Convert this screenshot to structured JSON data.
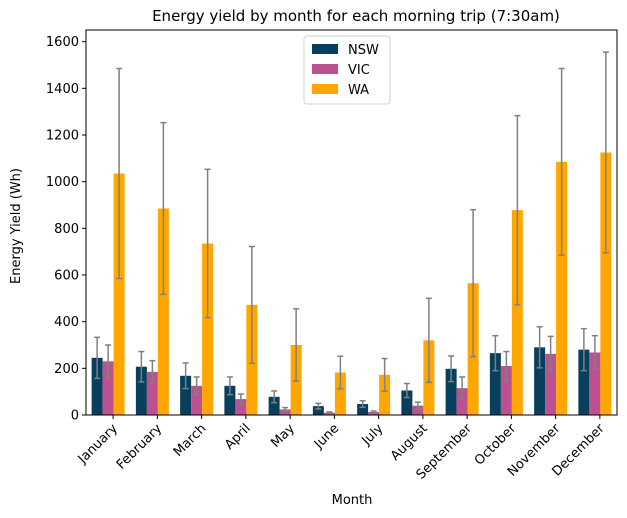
{
  "chart_data": {
    "type": "bar",
    "title": "Energy yield by month for each morning trip (7:30am)",
    "xlabel": "Month",
    "ylabel": "Energy Yield (Wh)",
    "ylim": [
      0,
      1650
    ],
    "yticks": [
      0,
      200,
      400,
      600,
      800,
      1000,
      1200,
      1400,
      1600
    ],
    "categories": [
      "January",
      "February",
      "March",
      "April",
      "May",
      "June",
      "July",
      "August",
      "September",
      "October",
      "November",
      "December"
    ],
    "legend_position": "top-center",
    "grid": false,
    "series": [
      {
        "name": "NSW",
        "color": "#073f5c",
        "values": [
          245,
          207,
          168,
          125,
          78,
          38,
          47,
          105,
          198,
          265,
          290,
          280
        ],
        "errors": [
          88,
          65,
          55,
          38,
          25,
          12,
          14,
          30,
          55,
          75,
          88,
          90
        ]
      },
      {
        "name": "VIC",
        "color": "#bc5090",
        "values": [
          230,
          185,
          125,
          68,
          24,
          10,
          13,
          40,
          115,
          210,
          262,
          268
        ],
        "errors": [
          70,
          48,
          38,
          22,
          8,
          3,
          4,
          15,
          48,
          62,
          75,
          72
        ]
      },
      {
        "name": "WA",
        "color": "#ffa600",
        "values": [
          1035,
          885,
          735,
          472,
          300,
          182,
          172,
          320,
          565,
          878,
          1085,
          1125
        ],
        "errors": [
          450,
          368,
          318,
          250,
          155,
          70,
          70,
          180,
          315,
          405,
          400,
          430
        ]
      }
    ],
    "error_bar_color": "#808080"
  }
}
